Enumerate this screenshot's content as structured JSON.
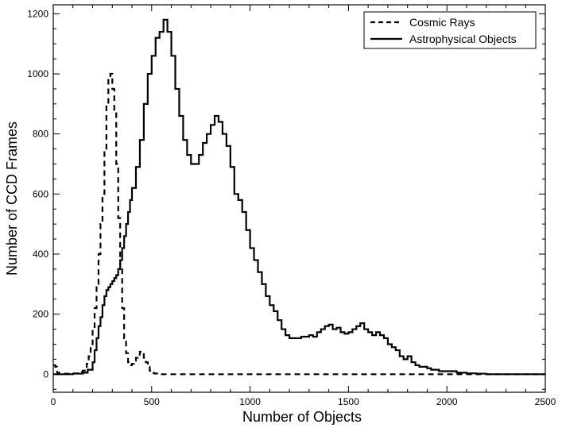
{
  "chart_data": {
    "type": "line",
    "xlabel": "Number of Objects",
    "ylabel": "Number of CCD Frames",
    "xlim": [
      0,
      2500
    ],
    "ylim": [
      -60,
      1230
    ],
    "xticks": [
      0,
      500,
      1000,
      1500,
      2000,
      2500
    ],
    "yticks": [
      0,
      200,
      400,
      600,
      800,
      1000,
      1200
    ],
    "x_minor_step": 100,
    "y_minor_step": 50,
    "grid": false,
    "legend_position": "top-right",
    "series": [
      {
        "name": "Cosmic Rays",
        "style": "dashed",
        "color": "#000000",
        "x": [
          0,
          10,
          20,
          30,
          40,
          50,
          60,
          70,
          80,
          90,
          100,
          110,
          120,
          130,
          140,
          150,
          160,
          170,
          180,
          190,
          200,
          210,
          220,
          230,
          240,
          250,
          260,
          270,
          280,
          290,
          300,
          310,
          320,
          330,
          340,
          350,
          360,
          370,
          380,
          390,
          400,
          410,
          420,
          430,
          440,
          450,
          460,
          470,
          480,
          490,
          500,
          510,
          520,
          530,
          540,
          550,
          560,
          570,
          580,
          600,
          700,
          800,
          900,
          1000,
          1200,
          1400,
          1600,
          1800,
          2000,
          2200,
          2500
        ],
        "values": [
          30,
          25,
          5,
          3,
          2,
          2,
          2,
          2,
          2,
          2,
          3,
          3,
          3,
          5,
          8,
          12,
          20,
          35,
          60,
          100,
          150,
          220,
          300,
          400,
          500,
          600,
          750,
          900,
          980,
          1000,
          950,
          880,
          700,
          520,
          350,
          220,
          120,
          70,
          40,
          30,
          35,
          45,
          55,
          65,
          75,
          70,
          55,
          40,
          25,
          12,
          5,
          3,
          2,
          1,
          0,
          0,
          0,
          0,
          0,
          0,
          0,
          0,
          0,
          0,
          0,
          0,
          0,
          0,
          0,
          0,
          0
        ]
      },
      {
        "name": "Astrophysical Objects",
        "style": "solid",
        "color": "#000000",
        "x": [
          0,
          50,
          100,
          150,
          175,
          200,
          210,
          220,
          230,
          240,
          250,
          260,
          270,
          280,
          290,
          300,
          310,
          320,
          330,
          340,
          350,
          360,
          370,
          380,
          390,
          400,
          420,
          440,
          460,
          480,
          500,
          520,
          540,
          560,
          580,
          600,
          620,
          640,
          660,
          680,
          700,
          720,
          740,
          760,
          780,
          800,
          820,
          840,
          860,
          880,
          900,
          920,
          940,
          960,
          980,
          1000,
          1020,
          1040,
          1060,
          1080,
          1100,
          1120,
          1140,
          1160,
          1180,
          1200,
          1220,
          1240,
          1260,
          1280,
          1300,
          1320,
          1340,
          1360,
          1380,
          1400,
          1420,
          1440,
          1460,
          1480,
          1500,
          1520,
          1540,
          1560,
          1580,
          1600,
          1620,
          1640,
          1660,
          1680,
          1700,
          1720,
          1740,
          1760,
          1780,
          1800,
          1820,
          1840,
          1860,
          1880,
          1900,
          1920,
          1940,
          1960,
          1980,
          2000,
          2050,
          2100,
          2150,
          2200,
          2300,
          2400,
          2500
        ],
        "values": [
          0,
          0,
          2,
          5,
          15,
          40,
          80,
          120,
          160,
          190,
          230,
          260,
          280,
          290,
          300,
          310,
          320,
          330,
          350,
          380,
          420,
          460,
          500,
          540,
          580,
          620,
          690,
          780,
          900,
          1000,
          1060,
          1120,
          1140,
          1180,
          1140,
          1060,
          950,
          860,
          780,
          730,
          700,
          700,
          730,
          770,
          800,
          830,
          860,
          840,
          800,
          760,
          690,
          600,
          580,
          540,
          480,
          420,
          380,
          340,
          300,
          260,
          230,
          210,
          180,
          150,
          130,
          120,
          120,
          120,
          125,
          125,
          130,
          125,
          140,
          150,
          160,
          165,
          150,
          155,
          140,
          135,
          140,
          150,
          160,
          170,
          150,
          140,
          130,
          140,
          130,
          120,
          100,
          90,
          80,
          60,
          50,
          60,
          40,
          30,
          25,
          25,
          20,
          15,
          15,
          10,
          10,
          10,
          5,
          3,
          2,
          0,
          0,
          0,
          0
        ]
      }
    ]
  }
}
